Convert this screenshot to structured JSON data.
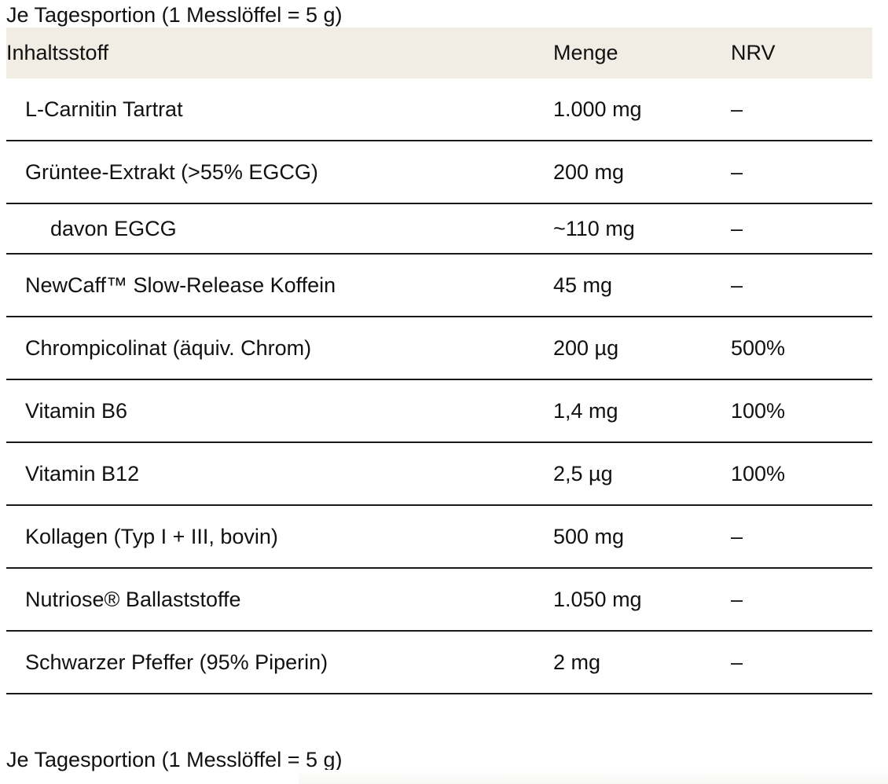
{
  "caption_top": "Je Tagesportion (1 Messlöffel = 5 g)",
  "caption_bottom": "Je Tagesportion (1 Messlöffel = 5 g)",
  "table": {
    "headers": [
      "Inhaltsstoff",
      "Menge",
      "NRV"
    ],
    "rows": [
      {
        "name": "L-Carnitin Tartrat",
        "amount": "1.000 mg",
        "nrv": "–"
      },
      {
        "name": "Grüntee-Extrakt (>55% EGCG)",
        "amount": "200 mg",
        "nrv": "–"
      },
      {
        "name": "davon EGCG",
        "amount": "~110 mg",
        "nrv": "–"
      },
      {
        "name": "NewCaff™ Slow-Release Koffein",
        "amount": "45 mg",
        "nrv": "–"
      },
      {
        "name": "Chrompicolinat (äquiv. Chrom)",
        "amount": "200 µg",
        "nrv": "500%"
      },
      {
        "name": "Vitamin B6",
        "amount": "1,4 mg",
        "nrv": "100%"
      },
      {
        "name": "Vitamin B12",
        "amount": "2,5 µg",
        "nrv": "100%"
      },
      {
        "name": "Kollagen (Typ I + III, bovin)",
        "amount": "500 mg",
        "nrv": "–"
      },
      {
        "name": "Nutriose® Ballaststoffe",
        "amount": "1.050 mg",
        "nrv": "–"
      },
      {
        "name": "Schwarzer Pfeffer (95% Piperin)",
        "amount": "2 mg",
        "nrv": "–"
      }
    ]
  }
}
